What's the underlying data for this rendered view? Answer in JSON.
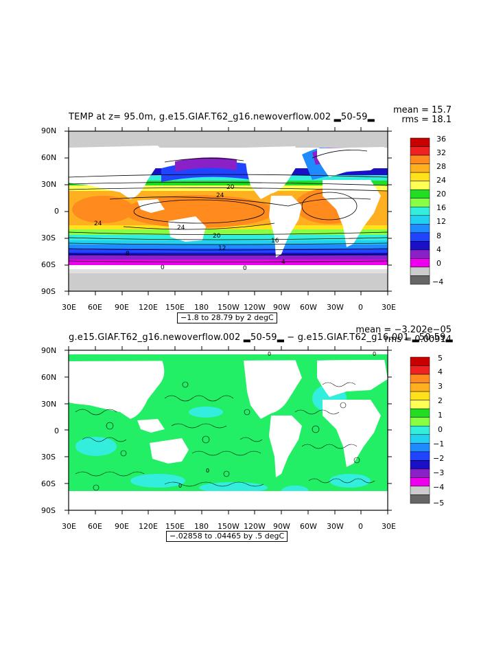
{
  "panels": [
    {
      "title": "TEMP at z=  95.0m, g.e15.GIAF.T62_g16.newoverflow.002 ▂50-59▂",
      "mean_text": "mean = 15.7",
      "rms_text": "rms = 18.1",
      "range_text": "−1.8 to 28.79 by 2 degC",
      "colorbar_labels": [
        "36",
        "32",
        "28",
        "24",
        "20",
        "16",
        "12",
        "8",
        "4",
        "0",
        "−4"
      ],
      "colorbar_colors": [
        "#c80000",
        "#ee2222",
        "#ff8a1e",
        "#ffb020",
        "#ffe21c",
        "#ffff55",
        "#22dd22",
        "#88ff44",
        "#33eedd",
        "#22d0f0",
        "#1e8cff",
        "#2044ff",
        "#1a10c8",
        "#8a20c8",
        "#ee00ee",
        "#cccccc",
        "#666666"
      ],
      "contour_labels": [
        "20",
        "24",
        "24",
        "24",
        "20",
        "16",
        "12",
        "8",
        "4",
        "0",
        "0"
      ]
    },
    {
      "title": "g.e15.GIAF.T62_g16.newoverflow.002 ▂50-59▂ − g.e15.GIAF.T62_g16.001 ▂50-59▂",
      "mean_text": "mean = −3.202e−05",
      "rms_text": "rms = 0.00914",
      "range_text": "−.02858 to .04465 by .5 degC",
      "colorbar_labels": [
        "5",
        "4",
        "3",
        "2",
        "1",
        "0",
        "−1",
        "−2",
        "−3",
        "−4",
        "−5"
      ],
      "colorbar_colors": [
        "#c80000",
        "#ee2222",
        "#ff8a1e",
        "#ffb020",
        "#ffe21c",
        "#ffff55",
        "#22dd22",
        "#88ff44",
        "#33eedd",
        "#22d0f0",
        "#1e8cff",
        "#2044ff",
        "#1a10c8",
        "#8a20c8",
        "#ee00ee",
        "#cccccc",
        "#666666"
      ],
      "contour_labels": [
        "0",
        "0",
        "0",
        "0"
      ]
    }
  ],
  "axes": {
    "lat_labels": [
      "90N",
      "60N",
      "30N",
      "0",
      "30S",
      "60S",
      "90S"
    ],
    "lon_labels": [
      "30E",
      "60E",
      "90E",
      "120E",
      "150E",
      "180",
      "150W",
      "120W",
      "90W",
      "60W",
      "30W",
      "0",
      "30E"
    ]
  },
  "colors": {
    "land": "#ffffff",
    "ice": "#cccccc",
    "warm": "#ffa030",
    "diff_pos": "#22ee66",
    "diff_neg": "#33eedd"
  }
}
